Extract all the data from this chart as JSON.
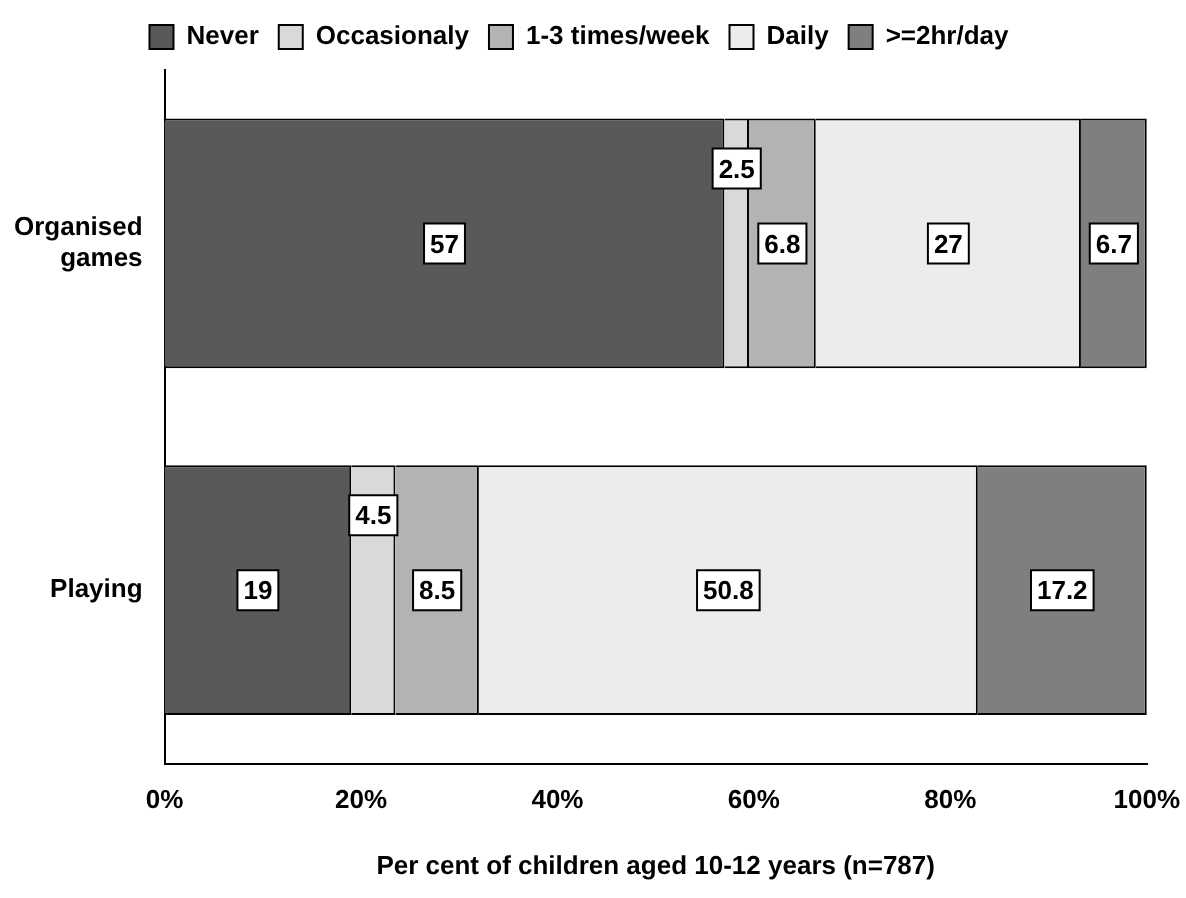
{
  "chart_data": {
    "type": "bar",
    "orientation": "horizontal",
    "stacked": true,
    "xlabel": "Per cent of children aged 10-12 years (n=787)",
    "categories": [
      "Organised games",
      "Playing"
    ],
    "series": [
      {
        "name": "Never",
        "color": "#595959",
        "values": [
          57,
          19
        ]
      },
      {
        "name": "Occasionaly",
        "color": "#d9d9d9",
        "values": [
          2.5,
          4.5
        ]
      },
      {
        "name": "1-3 times/week",
        "color": "#b3b3b3",
        "values": [
          6.8,
          8.5
        ]
      },
      {
        "name": "Daily",
        "color": "#ececec",
        "values": [
          27,
          50.8
        ]
      },
      {
        "name": ">=2hr/day",
        "color": "#7f7f7f",
        "values": [
          6.7,
          17.2
        ]
      }
    ],
    "xlim": [
      0,
      100
    ],
    "xticks": [
      {
        "value": 0,
        "label": "0%"
      },
      {
        "value": 20,
        "label": "20%"
      },
      {
        "value": 40,
        "label": "40%"
      },
      {
        "value": 60,
        "label": "60%"
      },
      {
        "value": 80,
        "label": "80%"
      },
      {
        "value": 100,
        "label": "100%"
      }
    ],
    "data_labels": true,
    "legend": "top",
    "grid": false
  }
}
